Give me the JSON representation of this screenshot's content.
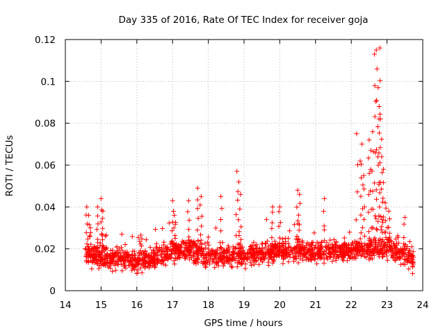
{
  "chart_data": {
    "type": "scatter",
    "title": "Day 335 of 2016, Rate Of TEC Index for receiver goja",
    "xlabel": "GPS time / hours",
    "ylabel": "ROTI / TECUs",
    "xlim": [
      14,
      24
    ],
    "ylim": [
      0,
      0.12
    ],
    "x_ticks": [
      14,
      15,
      16,
      17,
      18,
      19,
      20,
      21,
      22,
      23,
      24
    ],
    "x_tick_labels": [
      "14",
      "15",
      "16",
      "17",
      "18",
      "19",
      "20",
      "21",
      "22",
      "23",
      "24"
    ],
    "y_ticks": [
      0,
      0.02,
      0.04,
      0.06,
      0.08,
      0.1,
      0.12
    ],
    "y_tick_labels": [
      "0",
      "0.02",
      "0.04",
      "0.06",
      "0.08",
      "0.1",
      "0.12"
    ],
    "grid": true,
    "marker": "+",
    "marker_color": "#ff0000",
    "series": [
      {
        "name": "ROTI",
        "x_range": [
          14.55,
          23.75
        ],
        "typical_range": [
          0.005,
          0.03
        ],
        "baseline_profile": [
          [
            14.55,
            0.017
          ],
          [
            15.0,
            0.016
          ],
          [
            15.5,
            0.015
          ],
          [
            16.0,
            0.014
          ],
          [
            16.5,
            0.016
          ],
          [
            17.0,
            0.019
          ],
          [
            17.5,
            0.02
          ],
          [
            18.0,
            0.016
          ],
          [
            18.5,
            0.017
          ],
          [
            19.0,
            0.017
          ],
          [
            19.5,
            0.018
          ],
          [
            20.0,
            0.019
          ],
          [
            20.5,
            0.019
          ],
          [
            21.0,
            0.018
          ],
          [
            21.5,
            0.019
          ],
          [
            22.0,
            0.019
          ],
          [
            22.5,
            0.02
          ],
          [
            23.0,
            0.021
          ],
          [
            23.5,
            0.016
          ],
          [
            23.75,
            0.014
          ]
        ],
        "notable_points": [
          [
            14.6,
            0.04
          ],
          [
            14.65,
            0.036
          ],
          [
            14.7,
            0.03
          ],
          [
            14.9,
            0.04
          ],
          [
            15.0,
            0.044
          ],
          [
            15.05,
            0.038
          ],
          [
            17.0,
            0.043
          ],
          [
            17.05,
            0.036
          ],
          [
            17.45,
            0.043
          ],
          [
            17.7,
            0.049
          ],
          [
            17.8,
            0.045
          ],
          [
            18.35,
            0.045
          ],
          [
            18.8,
            0.057
          ],
          [
            18.85,
            0.052
          ],
          [
            18.9,
            0.046
          ],
          [
            19.8,
            0.04
          ],
          [
            20.0,
            0.04
          ],
          [
            20.5,
            0.048
          ],
          [
            20.55,
            0.046
          ],
          [
            21.25,
            0.044
          ],
          [
            22.15,
            0.075
          ],
          [
            22.25,
            0.062
          ],
          [
            22.3,
            0.07
          ],
          [
            22.35,
            0.055
          ],
          [
            22.5,
            0.072
          ],
          [
            22.55,
            0.067
          ],
          [
            22.6,
            0.076
          ],
          [
            22.65,
            0.113
          ],
          [
            22.7,
            0.115
          ],
          [
            22.72,
            0.106
          ],
          [
            22.75,
            0.097
          ],
          [
            22.78,
            0.088
          ],
          [
            22.8,
            0.116
          ],
          [
            22.82,
            0.082
          ],
          [
            22.85,
            0.064
          ],
          [
            22.9,
            0.058
          ],
          [
            22.95,
            0.042
          ],
          [
            23.05,
            0.038
          ],
          [
            23.5,
            0.035
          ]
        ]
      }
    ]
  }
}
